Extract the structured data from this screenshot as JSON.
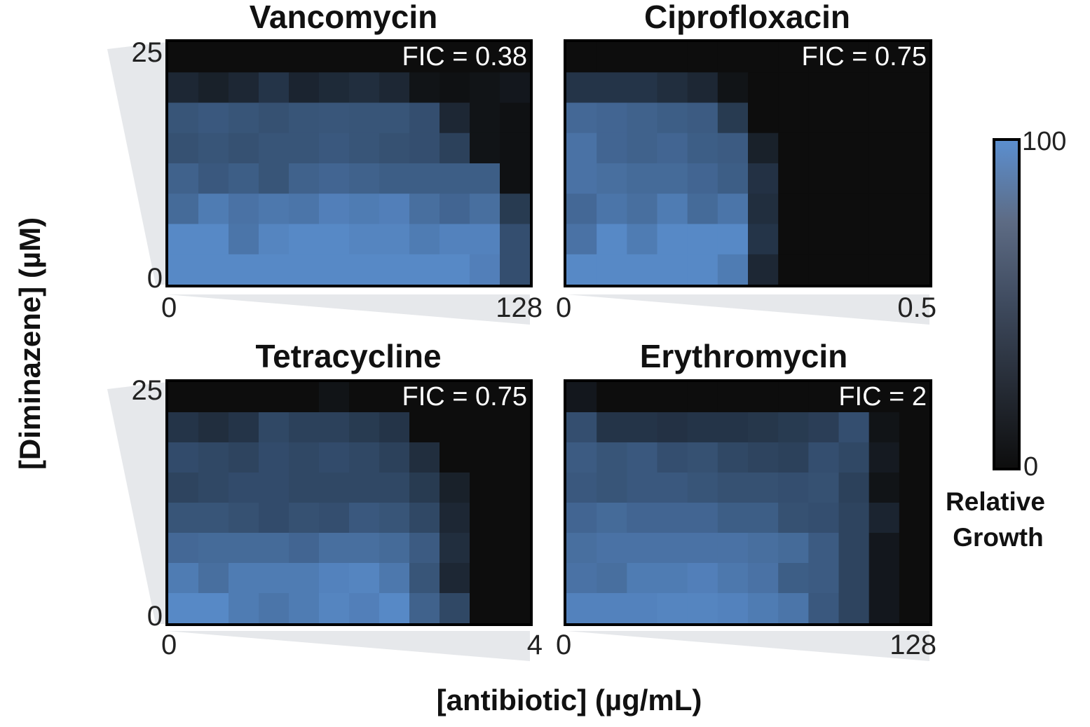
{
  "chart_data": {
    "type": "heatmap",
    "xlabel": "[antibiotic] (µg/mL)",
    "ylabel": "[Diminazene] (µM)",
    "y_range": [
      0,
      25
    ],
    "y_tick_labels": [
      "0",
      "25"
    ],
    "rows_order": "top-to-bottom = high to low diminazene",
    "colorbar": {
      "label_line1": "Relative",
      "label_line2": "Growth",
      "min_label": "0",
      "max_label": "100",
      "range": [
        0,
        100
      ],
      "low_color": "#0d0d0d",
      "high_color": "#5b8fd0"
    },
    "panels": [
      {
        "title": "Vancomycin",
        "fic": "FIC = 0.38",
        "x_range": [
          0,
          128
        ],
        "x_tick_labels": [
          "0",
          "128"
        ],
        "grid": [
          [
            0,
            0,
            0,
            0,
            0,
            0,
            0,
            0,
            0,
            0,
            0,
            0
          ],
          [
            20,
            15,
            20,
            30,
            18,
            22,
            25,
            20,
            5,
            3,
            5,
            8
          ],
          [
            55,
            58,
            55,
            52,
            55,
            56,
            55,
            55,
            50,
            20,
            5,
            3
          ],
          [
            52,
            55,
            52,
            55,
            55,
            58,
            55,
            52,
            50,
            40,
            5,
            3
          ],
          [
            65,
            58,
            62,
            55,
            65,
            68,
            65,
            62,
            62,
            62,
            62,
            3
          ],
          [
            72,
            85,
            78,
            82,
            80,
            88,
            85,
            88,
            75,
            68,
            75,
            35
          ],
          [
            95,
            95,
            80,
            92,
            95,
            95,
            92,
            92,
            85,
            90,
            90,
            50
          ],
          [
            95,
            95,
            95,
            95,
            95,
            95,
            95,
            95,
            95,
            95,
            88,
            50
          ]
        ]
      },
      {
        "title": "Ciprofloxacin",
        "fic": "FIC = 0.75",
        "x_range": [
          0,
          0.5
        ],
        "x_tick_labels": [
          "0",
          "0.5"
        ],
        "grid": [
          [
            0,
            0,
            0,
            0,
            0,
            0,
            0,
            0,
            0,
            0,
            0,
            0
          ],
          [
            30,
            30,
            30,
            25,
            20,
            5,
            0,
            0,
            0,
            0,
            0,
            0
          ],
          [
            70,
            68,
            65,
            62,
            60,
            35,
            0,
            0,
            0,
            0,
            0,
            0
          ],
          [
            78,
            68,
            65,
            68,
            62,
            60,
            15,
            0,
            0,
            0,
            0,
            0
          ],
          [
            78,
            75,
            72,
            72,
            68,
            62,
            28,
            0,
            0,
            0,
            0,
            0
          ],
          [
            70,
            80,
            75,
            85,
            72,
            80,
            25,
            0,
            0,
            0,
            0,
            0
          ],
          [
            78,
            95,
            85,
            95,
            95,
            95,
            30,
            0,
            0,
            0,
            0,
            0
          ],
          [
            95,
            95,
            95,
            95,
            95,
            85,
            20,
            0,
            0,
            0,
            0,
            0
          ]
        ]
      },
      {
        "title": "Tetracycline",
        "fic": "FIC = 0.75",
        "x_range": [
          0,
          4
        ],
        "x_tick_labels": [
          "0",
          "4"
        ],
        "grid": [
          [
            0,
            0,
            0,
            0,
            0,
            5,
            0,
            0,
            0,
            0,
            0,
            0
          ],
          [
            30,
            25,
            30,
            45,
            40,
            40,
            35,
            30,
            0,
            0,
            0,
            0
          ],
          [
            48,
            45,
            42,
            48,
            45,
            48,
            45,
            40,
            25,
            0,
            0,
            0
          ],
          [
            42,
            45,
            48,
            48,
            45,
            45,
            45,
            45,
            35,
            15,
            0,
            0
          ],
          [
            55,
            55,
            52,
            48,
            52,
            50,
            58,
            55,
            45,
            20,
            0,
            0
          ],
          [
            70,
            72,
            72,
            72,
            68,
            75,
            75,
            72,
            60,
            25,
            0,
            0
          ],
          [
            85,
            75,
            85,
            85,
            85,
            90,
            92,
            82,
            55,
            20,
            0,
            0
          ],
          [
            95,
            95,
            85,
            80,
            85,
            92,
            88,
            95,
            65,
            45,
            0,
            0
          ]
        ]
      },
      {
        "title": "Erythromycin",
        "fic": "FIC = 2",
        "x_range": [
          0,
          128
        ],
        "x_tick_labels": [
          "0",
          "128"
        ],
        "grid": [
          [
            8,
            0,
            0,
            0,
            0,
            0,
            0,
            0,
            0,
            0,
            0,
            0
          ],
          [
            50,
            30,
            30,
            28,
            30,
            30,
            32,
            35,
            38,
            50,
            5,
            0
          ],
          [
            60,
            55,
            58,
            50,
            52,
            45,
            42,
            40,
            50,
            45,
            10,
            0
          ],
          [
            58,
            55,
            58,
            58,
            55,
            52,
            52,
            50,
            52,
            40,
            5,
            0
          ],
          [
            68,
            72,
            68,
            68,
            68,
            62,
            62,
            52,
            50,
            42,
            18,
            0
          ],
          [
            75,
            78,
            78,
            78,
            78,
            78,
            75,
            72,
            60,
            42,
            8,
            0
          ],
          [
            78,
            75,
            85,
            85,
            88,
            82,
            78,
            62,
            60,
            42,
            8,
            0
          ],
          [
            90,
            90,
            90,
            92,
            92,
            90,
            85,
            80,
            58,
            42,
            8,
            0
          ]
        ]
      }
    ]
  }
}
